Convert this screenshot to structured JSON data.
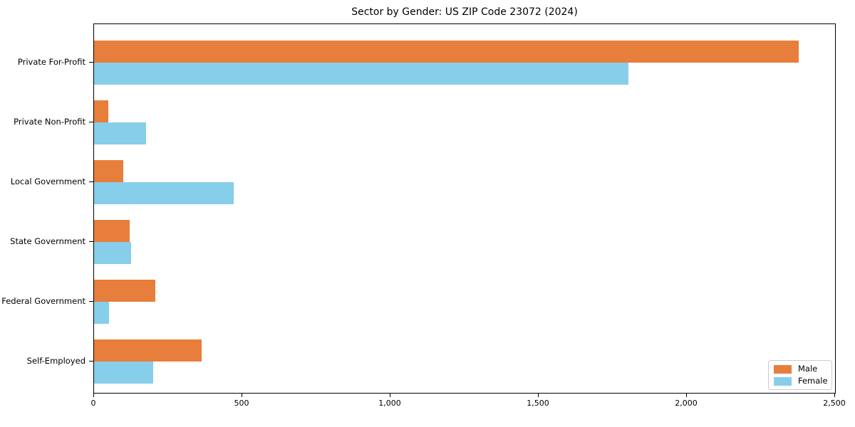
{
  "chart_data": {
    "type": "bar",
    "orientation": "horizontal",
    "title": "Sector by Gender: US ZIP Code 23072 (2024)",
    "categories": [
      "Private For-Profit",
      "Private Non-Profit",
      "Local Government",
      "State Government",
      "Federal Government",
      "Self-Employed"
    ],
    "series": [
      {
        "name": "Male",
        "color": "#E87E3C",
        "values": [
          2377,
          47,
          98,
          119,
          206,
          364
        ]
      },
      {
        "name": "Female",
        "color": "#87CEEB",
        "values": [
          1804,
          175,
          470,
          125,
          51,
          199
        ]
      }
    ],
    "xlabel": "",
    "ylabel": "",
    "xlim": [
      0,
      2500
    ],
    "xticks": [
      0,
      500,
      1000,
      1500,
      2000,
      2500
    ],
    "xtick_labels": [
      "0",
      "500",
      "1,000",
      "1,500",
      "2,000",
      "2,500"
    ],
    "grid": false,
    "legend_position": "lower right",
    "colors": {
      "axis": "#000000",
      "background": "#ffffff",
      "legend_border": "#cccccc"
    }
  }
}
